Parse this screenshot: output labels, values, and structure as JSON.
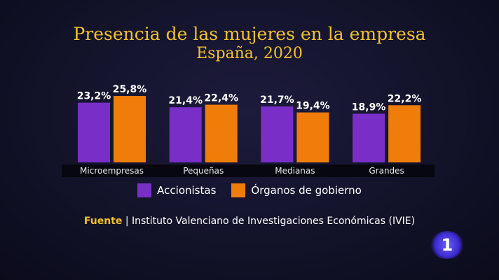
{
  "chart_data": {
    "type": "bar",
    "title": "Presencia de las mujeres en la empresa",
    "subtitle": "España, 2020",
    "categories": [
      "Microempresas",
      "Pequeñas",
      "Medianas",
      "Grandes"
    ],
    "series": [
      {
        "name": "Accionistas",
        "color": "#7a2ec8",
        "values": [
          23.2,
          21.4,
          21.7,
          18.9
        ],
        "labels": [
          "23,2%",
          "21,4%",
          "21,7%",
          "18,9%"
        ]
      },
      {
        "name": "Órganos de gobierno",
        "color": "#f07d0a",
        "values": [
          25.8,
          22.4,
          19.4,
          22.2
        ],
        "labels": [
          "25,8%",
          "22,4%",
          "19,4%",
          "22,2%"
        ]
      }
    ],
    "unit": "%",
    "ylim": [
      0,
      30
    ],
    "grid": false,
    "legend": "bottom"
  },
  "source": {
    "label": "Fuente",
    "text": " | Instituto Valenciano de Investigaciones Económicas (IVIE)"
  },
  "logo": {
    "text": "1",
    "color": "#5a4cff"
  }
}
